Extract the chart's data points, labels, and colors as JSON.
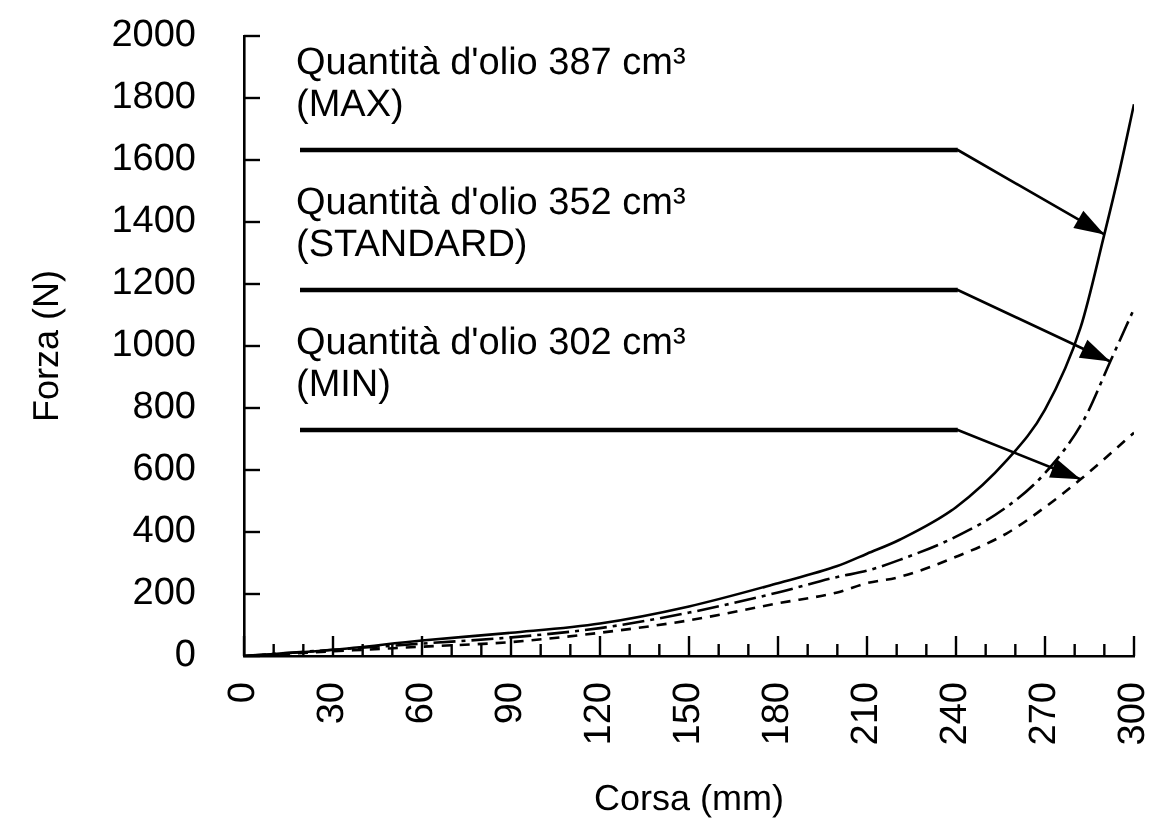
{
  "chart_data": {
    "type": "line",
    "xlabel": "Corsa (mm)",
    "ylabel": "Forza (N)",
    "xlim": [
      0,
      300
    ],
    "xticks": [
      0,
      {
        "value": 10,
        "label": null
      },
      {
        "value": 20,
        "label": null
      },
      30,
      {
        "value": 40,
        "label": null
      },
      {
        "value": 50,
        "label": null
      },
      60,
      {
        "value": 70,
        "label": null
      },
      {
        "value": 80,
        "label": null
      },
      90,
      {
        "value": 100,
        "label": null
      },
      {
        "value": 110,
        "label": null
      },
      120,
      {
        "value": 130,
        "label": null
      },
      {
        "value": 140,
        "label": null
      },
      150,
      {
        "value": 160,
        "label": null
      },
      {
        "value": 170,
        "label": null
      },
      180,
      {
        "value": 190,
        "label": null
      },
      {
        "value": 200,
        "label": null
      },
      210,
      {
        "value": 220,
        "label": null
      },
      {
        "value": 230,
        "label": null
      },
      240,
      {
        "value": 250,
        "label": null
      },
      {
        "value": 260,
        "label": null
      },
      270,
      {
        "value": 280,
        "label": null
      },
      {
        "value": 290,
        "label": null
      },
      300
    ],
    "ylim": [
      0,
      2000
    ],
    "yticks": [
      0,
      200,
      400,
      600,
      800,
      1000,
      1200,
      1400,
      1600,
      1800,
      2000
    ],
    "grid": false,
    "legend": false,
    "marker": "none",
    "series": [
      {
        "color": "#000000",
        "line_style": "solid",
        "x": [
          0,
          30,
          60,
          90,
          120,
          150,
          180,
          200,
          210,
          221,
          240,
          257,
          270,
          282,
          290,
          295,
          300
        ],
        "values": [
          0,
          20,
          50,
          75,
          105,
          160,
          235,
          290,
          330,
          375,
          480,
          630,
          795,
          1060,
          1360,
          1560,
          1780
        ]
      },
      {
        "color": "#000000",
        "line_style": "dashdot",
        "x": [
          0,
          30,
          60,
          90,
          120,
          150,
          180,
          200,
          210,
          221,
          240,
          257,
          270,
          283,
          292,
          300
        ],
        "values": [
          0,
          20,
          40,
          60,
          90,
          140,
          205,
          255,
          275,
          310,
          385,
          480,
          590,
          760,
          950,
          1120
        ]
      },
      {
        "color": "#000000",
        "line_style": "dashed",
        "x": [
          0,
          30,
          60,
          90,
          120,
          150,
          180,
          200,
          210,
          221,
          240,
          257,
          270,
          282,
          300
        ],
        "values": [
          0,
          15,
          30,
          45,
          75,
          115,
          170,
          205,
          235,
          255,
          320,
          395,
          480,
          570,
          720
        ]
      }
    ],
    "annotations": [
      {
        "text": "Quantità d'olio 387 cm³\n(MAX)",
        "x": 290,
        "y": 1360
      },
      {
        "text": "Quantità d'olio 352 cm³\n(STANDARD)",
        "x": 292,
        "y": 950
      },
      {
        "text": "Quantità d'olio 302 cm³\n(MIN)",
        "x": 282,
        "y": 570
      }
    ]
  }
}
